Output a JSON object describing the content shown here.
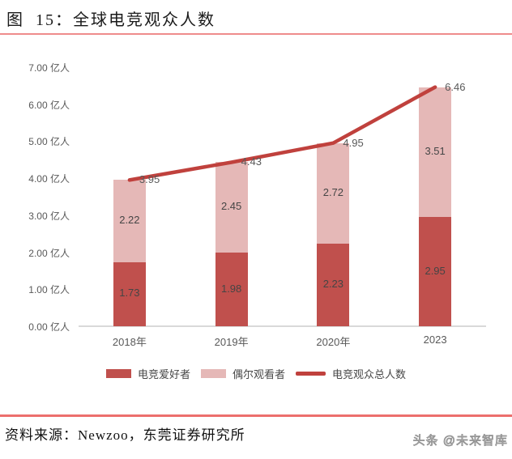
{
  "title": "图  15：全球电竞观众人数",
  "source": "资料来源：Newzoo，东莞证券研究所",
  "watermark": "头条 @未来智库",
  "colors": {
    "enthusiast_bar": "#c0504d",
    "occasional_bar": "#e5b8b7",
    "total_line": "#c0413d",
    "title_underline": "#ee8c8c",
    "footer_divider": "#ec6f6d",
    "axis_line": "#d9d9d9",
    "tick_text": "#595959"
  },
  "chart_data": {
    "type": "bar",
    "subtype": "stacked-bars-with-total-line",
    "categories": [
      "2018年",
      "2019年",
      "2020年",
      "2023"
    ],
    "series": [
      {
        "id": "esports-enthusiasts",
        "name": "电竞爱好者",
        "kind": "bar",
        "color": "#c0504d",
        "values": [
          1.73,
          1.98,
          2.23,
          2.95
        ]
      },
      {
        "id": "occasional-viewers",
        "name": "偶尔观看者",
        "kind": "bar",
        "color": "#e5b8b7",
        "values": [
          2.22,
          2.45,
          2.72,
          3.51
        ]
      },
      {
        "id": "total-audience",
        "name": "电竞观众总人数",
        "kind": "line",
        "color": "#c0413d",
        "values": [
          3.95,
          4.43,
          4.95,
          6.46
        ]
      }
    ],
    "ylim": [
      0,
      7
    ],
    "ytick_labels": [
      "0.00 亿人",
      "1.00 亿人",
      "2.00 亿人",
      "3.00 亿人",
      "4.00 亿人",
      "5.00 亿人",
      "6.00 亿人",
      "7.00 亿人"
    ],
    "grid": false,
    "legend_position": "bottom"
  }
}
